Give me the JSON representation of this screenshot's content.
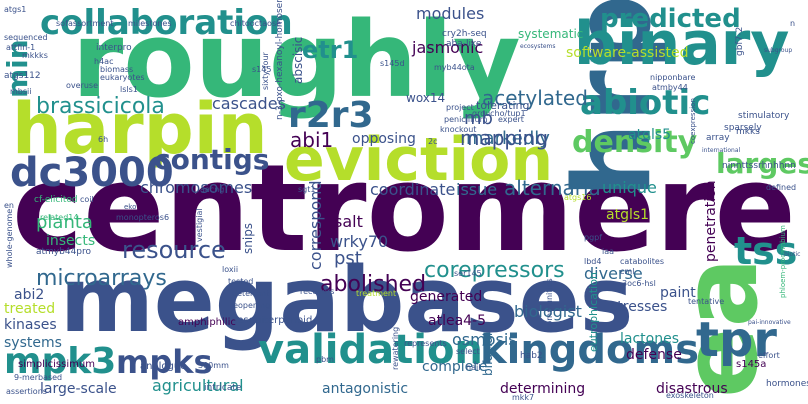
{
  "palette": {
    "dark_purple": "#440154",
    "indigo": "#3b528b",
    "blue": "#31688e",
    "teal": "#21908d",
    "green": "#35b779",
    "light_green": "#5ec962",
    "yellow_green": "#b5de2b",
    "yellow": "#fde725"
  },
  "words": {
    "centromere": "centromere",
    "megabases": "megabases",
    "roughly": "roughly",
    "hrpn": "hrpn",
    "harpin": "harpin",
    "eviction": "eviction",
    "binary": "binary",
    "ea": "ea",
    "collaboration": "collaboration",
    "validation": "validation",
    "kingdoms": "kingdoms",
    "dc3000": "dc3000",
    "tpr": "tpr",
    "tss": "tss",
    "mpk3": "mpk3",
    "mpks": "mpks",
    "r2r3": "r2r3",
    "abiotic": "abiotic",
    "density": "density",
    "largest": "largest",
    "predicted": "predicted",
    "contigs": "contigs",
    "etr1": "etr1",
    "min": "min",
    "brassicicola": "brassicicola",
    "resource": "resource",
    "microarrays": "microarrays",
    "abolished": "abolished",
    "corepressors": "corepressors",
    "alternaria": "alternaria",
    "markedly": "markedly",
    "acetylated": "acetylated",
    "modules": "modules",
    "jasmonic": "jasmonic",
    "mb": "mb",
    "mapping": "mapping",
    "abi1": "abi1",
    "cascades": "cascades",
    "chromosomes": "chromosomes",
    "coordinate": "coordinate",
    "issue": "issue",
    "unique": "unique",
    "correspond": "correspond",
    "salt": "salt",
    "wrky70": "wrky70",
    "pst": "pst",
    "planta": "planta",
    "insects": "insects",
    "kinases": "kinases",
    "systems": "systems",
    "treated": "treated",
    "abi2": "abi2",
    "biologist": "biologist",
    "diverse": "diverse",
    "generated": "generated",
    "atlea4_5": "atlea4-5",
    "osmosis": "osmosis",
    "agricultural": "agricultural",
    "antagonistic": "antagonistic",
    "complete": "complete",
    "determining": "determining",
    "large_scale": "large-scale",
    "lactones": "lactones",
    "defense": "defense",
    "disastrous": "disastrous",
    "penetration": "penetration",
    "stresses": "stresses",
    "paint": "paint",
    "atgls5": "atgls5",
    "atgls1": "atgls1",
    "opposing": "opposing",
    "software_assisted": "software-assisted",
    "systematic": "systematic",
    "abscisic": "abscisic",
    "n3_oxo_hexanoyl_homoserine": "n-3-oxo-hexanoyl-homoserine",
    "wox14": "wox14",
    "tolerating": "tolerating",
    "cry2h_seq": "cry2h-seq",
    "aba_like": "aba-like",
    "snips": "snips",
    "eutrophication": "eutrophication",
    "bifacial": "bifacial",
    "sesquiterpenoid": "sesquiterpenoid",
    "amphiphilic": "amphiphilic",
    "simplicissimum": "simplicissimum",
    "analogue": "analogue",
    "intricate": "intricate",
    "hab2": "hab2",
    "s145a": "s145a",
    "mkk7": "mkk7",
    "exoskeleton": "exoskeleton",
    "hormones": "hormones",
    "ninnttssrhnhhnn": "ninnttssrhnhhnn",
    "stimulatory": "stimulatory",
    "sparsely": "sparsely",
    "array": "array",
    "mkks": "mkks",
    "nipponbare": "nipponbare",
    "atmby44": "atmby44",
    "groucho_tup1": "groucho/tup1",
    "penicillium": "penicillium",
    "knockout": "knockout",
    "project": "project",
    "myb44ota": "myb44ota",
    "interpro": "interpro",
    "biomass": "biomass",
    "eukaryotes": "eukaryotes",
    "lsls1": "lsls1",
    "atgs112": "atgs112",
    "mbsii": "mbsii",
    "mkkks": "mkkks",
    "attfin_1": "attfin-1",
    "sequenced": "sequenced",
    "sof": "sof",
    "assortment": "assortment",
    "milestones": "milestones",
    "chitooctaose": "chitooctaose",
    "sixty_four": "sixty-four",
    "s145": "s145",
    "s145d": "s145d",
    "atgs16": "atgs16",
    "expert": "expert",
    "atgs1": "atgs1",
    "h4ac": "h4ac",
    "overuse": "overuse",
    "cf_elicited": "cf-elicited",
    "coil": "coil",
    "related14": "related14",
    "atmyb44pro": "atmyb44pro",
    "monopteros6": "monopteros6",
    "loxii": "loxii",
    "tested": "tested",
    "recovers": "recovers",
    "deterrent": "deterrent",
    "reopening": "reopening",
    "treatment": "treatment",
    "nine_merbased": "9-merbased",
    "assertions": "assertions",
    "300mm": "300mm",
    "pbm": "pbm",
    "rewatering": "rewatering",
    "ser145": "ser145",
    "lbd4": "lbd4",
    "iaa": "iaa",
    "pgpf": "pgpf",
    "communities": "communities",
    "catabolites": "catabolites",
    "cml": "cml",
    "three_oc6_hsl": "3oc6-hsl",
    "tentative": "tentative",
    "select": "select",
    "hail": "hail",
    "represents": "represents",
    "aacng": "aacng",
    "sgt1": "sgt1",
    "twoc": "2c",
    "sixh": "6h",
    "en": "en",
    "whole_genome": "whole-genome",
    "vestigial": "vestigial",
    "defined": "defined",
    "international": "international",
    "coexpression": "coexpression",
    "philum_procambium": "phloem-procambium",
    "gbf7_2": "gbf7-2",
    "ecosystems": "ecosystems",
    "subgroup": "subgroup",
    "effort": "effort",
    "gsi_nourishment": "pai-innovative",
    "biotic": "biotic",
    "ek": "eko",
    "n": "n"
  }
}
